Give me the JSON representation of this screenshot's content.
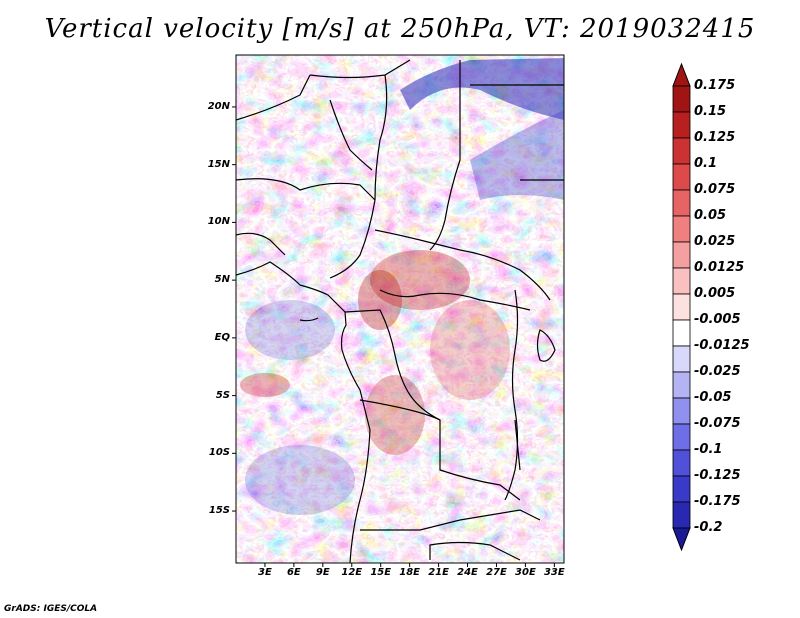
{
  "title": "Vertical velocity [m/s] at 250hPa, VT: 2019032415",
  "footer": "GrADS: IGES/COLA",
  "map": {
    "lon_range": [
      0,
      34
    ],
    "lat_range": [
      -19.5,
      24.5
    ],
    "lat_ticks": [
      {
        "value": 20,
        "label": "20N"
      },
      {
        "value": 15,
        "label": "15N"
      },
      {
        "value": 10,
        "label": "10N"
      },
      {
        "value": 5,
        "label": "5N"
      },
      {
        "value": 0,
        "label": "EQ"
      },
      {
        "value": -5,
        "label": "5S"
      },
      {
        "value": -10,
        "label": "10S"
      },
      {
        "value": -15,
        "label": "15S"
      }
    ],
    "lon_ticks": [
      {
        "value": 3,
        "label": "3E"
      },
      {
        "value": 6,
        "label": "6E"
      },
      {
        "value": 9,
        "label": "9E"
      },
      {
        "value": 12,
        "label": "12E"
      },
      {
        "value": 15,
        "label": "15E"
      },
      {
        "value": 18,
        "label": "18E"
      },
      {
        "value": 21,
        "label": "21E"
      },
      {
        "value": 24,
        "label": "24E"
      },
      {
        "value": 27,
        "label": "27E"
      },
      {
        "value": 30,
        "label": "30E"
      },
      {
        "value": 33,
        "label": "33E"
      }
    ]
  },
  "colorbar": {
    "levels": [
      {
        "label": "0.175",
        "color": "#a01414"
      },
      {
        "label": "0.15",
        "color": "#b82020"
      },
      {
        "label": "0.125",
        "color": "#cc3232"
      },
      {
        "label": "0.1",
        "color": "#dc4a4a"
      },
      {
        "label": "0.075",
        "color": "#e66464"
      },
      {
        "label": "0.05",
        "color": "#f08080"
      },
      {
        "label": "0.025",
        "color": "#f5a0a0"
      },
      {
        "label": "0.0125",
        "color": "#fac0c0"
      },
      {
        "label": "0.005",
        "color": "#fde0e0"
      },
      {
        "label": "-0.005",
        "color": "#ffffff"
      },
      {
        "label": "-0.0125",
        "color": "#d8d8fa"
      },
      {
        "label": "-0.025",
        "color": "#b4b4f5"
      },
      {
        "label": "-0.05",
        "color": "#9090ee"
      },
      {
        "label": "-0.075",
        "color": "#6e6ee6"
      },
      {
        "label": "-0.1",
        "color": "#5050d8"
      },
      {
        "label": "-0.125",
        "color": "#3a3ac8"
      },
      {
        "label": "-0.175",
        "color": "#2828b0"
      },
      {
        "label": "-0.2",
        "color": "#1a1a96"
      }
    ],
    "top_color": "#a01414",
    "bottom_color": "#1a1a96"
  }
}
